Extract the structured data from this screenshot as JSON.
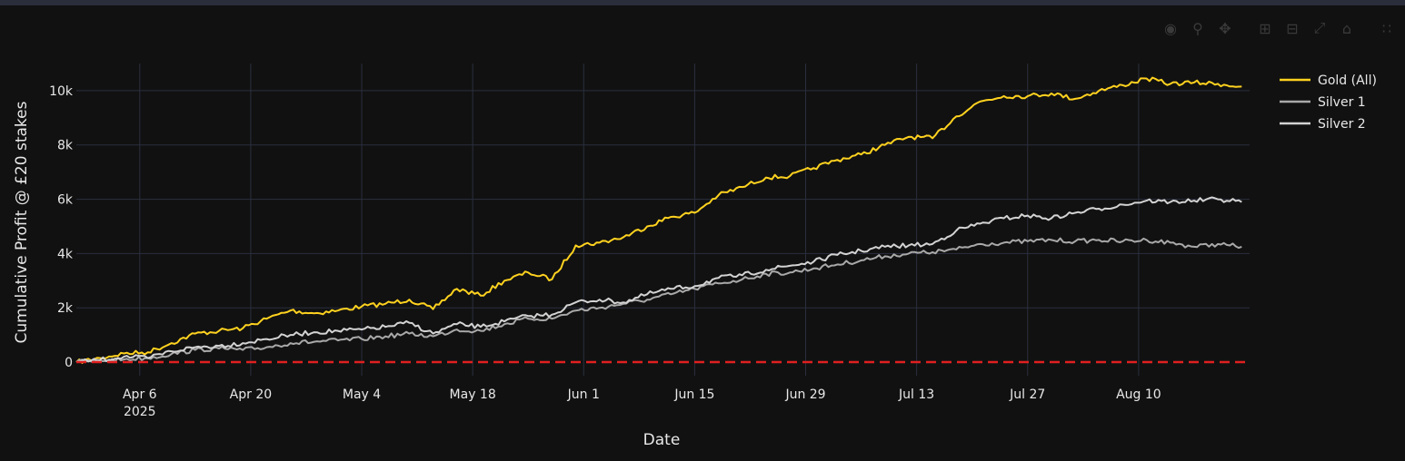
{
  "colors": {
    "background": "#111111",
    "grid": "#2b2f3e",
    "axis_text": "#e8e8e8",
    "gold": "#ffd21f",
    "silver1": "#a9a9a9",
    "silver2": "#d3d3d3",
    "zero_line": "#e02020"
  },
  "modebar": {
    "icons": [
      "camera-icon",
      "zoom-icon",
      "pan-icon",
      "zoom-in-icon",
      "zoom-out-icon",
      "autoscale-icon",
      "reset-axes-icon",
      "plotly-logo-icon"
    ]
  },
  "chart_data": {
    "type": "line",
    "title": "",
    "xlabel": "Date",
    "ylabel": "Cumulative Profit @ £20 stakes",
    "xlim": [
      "2025-03-29",
      "2025-08-24"
    ],
    "ylim": [
      -500,
      11000
    ],
    "x_ticks": [
      {
        "date": "2025-04-06",
        "label": "Apr 6",
        "sublabel": "2025"
      },
      {
        "date": "2025-04-20",
        "label": "Apr 20",
        "sublabel": ""
      },
      {
        "date": "2025-05-04",
        "label": "May 4",
        "sublabel": ""
      },
      {
        "date": "2025-05-18",
        "label": "May 18",
        "sublabel": ""
      },
      {
        "date": "2025-06-01",
        "label": "Jun 1",
        "sublabel": ""
      },
      {
        "date": "2025-06-15",
        "label": "Jun 15",
        "sublabel": ""
      },
      {
        "date": "2025-06-29",
        "label": "Jun 29",
        "sublabel": ""
      },
      {
        "date": "2025-07-13",
        "label": "Jul 13",
        "sublabel": ""
      },
      {
        "date": "2025-07-27",
        "label": "Jul 27",
        "sublabel": ""
      },
      {
        "date": "2025-08-10",
        "label": "Aug 10",
        "sublabel": ""
      }
    ],
    "y_ticks": [
      {
        "value": 0,
        "label": "0"
      },
      {
        "value": 2000,
        "label": "2k"
      },
      {
        "value": 4000,
        "label": "4k"
      },
      {
        "value": 6000,
        "label": "6k"
      },
      {
        "value": 8000,
        "label": "8k"
      },
      {
        "value": 10000,
        "label": "10k"
      }
    ],
    "legend_position": "top-right",
    "zero_line": {
      "value": 0,
      "style": "dashed"
    },
    "series": [
      {
        "name": "Gold (All)",
        "color": "#ffd21f",
        "points": [
          [
            "2025-03-29",
            0
          ],
          [
            "2025-04-01",
            150
          ],
          [
            "2025-04-04",
            320
          ],
          [
            "2025-04-07",
            360
          ],
          [
            "2025-04-10",
            700
          ],
          [
            "2025-04-13",
            1050
          ],
          [
            "2025-04-16",
            1150
          ],
          [
            "2025-04-19",
            1250
          ],
          [
            "2025-04-22",
            1600
          ],
          [
            "2025-04-25",
            1900
          ],
          [
            "2025-04-28",
            1800
          ],
          [
            "2025-05-01",
            1900
          ],
          [
            "2025-05-04",
            2050
          ],
          [
            "2025-05-07",
            2150
          ],
          [
            "2025-05-10",
            2300
          ],
          [
            "2025-05-13",
            1950
          ],
          [
            "2025-05-16",
            2700
          ],
          [
            "2025-05-19",
            2450
          ],
          [
            "2025-05-22",
            3000
          ],
          [
            "2025-05-25",
            3300
          ],
          [
            "2025-05-28",
            3050
          ],
          [
            "2025-05-31",
            4300
          ],
          [
            "2025-06-03",
            4400
          ],
          [
            "2025-06-06",
            4600
          ],
          [
            "2025-06-09",
            5000
          ],
          [
            "2025-06-12",
            5350
          ],
          [
            "2025-06-15",
            5500
          ],
          [
            "2025-06-18",
            6150
          ],
          [
            "2025-06-21",
            6450
          ],
          [
            "2025-06-24",
            6800
          ],
          [
            "2025-06-27",
            6850
          ],
          [
            "2025-06-30",
            7150
          ],
          [
            "2025-07-03",
            7450
          ],
          [
            "2025-07-06",
            7650
          ],
          [
            "2025-07-09",
            8000
          ],
          [
            "2025-07-12",
            8300
          ],
          [
            "2025-07-15",
            8250
          ],
          [
            "2025-07-18",
            9050
          ],
          [
            "2025-07-21",
            9600
          ],
          [
            "2025-07-24",
            9800
          ],
          [
            "2025-07-27",
            9800
          ],
          [
            "2025-07-30",
            9900
          ],
          [
            "2025-08-02",
            9700
          ],
          [
            "2025-08-05",
            10000
          ],
          [
            "2025-08-08",
            10200
          ],
          [
            "2025-08-11",
            10450
          ],
          [
            "2025-08-14",
            10250
          ],
          [
            "2025-08-17",
            10300
          ],
          [
            "2025-08-20",
            10250
          ],
          [
            "2025-08-23",
            10150
          ]
        ]
      },
      {
        "name": "Silver 1",
        "color": "#a9a9a9",
        "points": [
          [
            "2025-03-29",
            0
          ],
          [
            "2025-04-01",
            50
          ],
          [
            "2025-04-04",
            100
          ],
          [
            "2025-04-07",
            150
          ],
          [
            "2025-04-10",
            300
          ],
          [
            "2025-04-13",
            450
          ],
          [
            "2025-04-16",
            500
          ],
          [
            "2025-04-19",
            450
          ],
          [
            "2025-04-22",
            550
          ],
          [
            "2025-04-25",
            700
          ],
          [
            "2025-04-28",
            750
          ],
          [
            "2025-05-01",
            800
          ],
          [
            "2025-05-04",
            850
          ],
          [
            "2025-05-07",
            950
          ],
          [
            "2025-05-10",
            1050
          ],
          [
            "2025-05-13",
            950
          ],
          [
            "2025-05-16",
            1200
          ],
          [
            "2025-05-19",
            1150
          ],
          [
            "2025-05-22",
            1400
          ],
          [
            "2025-05-25",
            1600
          ],
          [
            "2025-05-28",
            1600
          ],
          [
            "2025-05-31",
            1900
          ],
          [
            "2025-06-03",
            2000
          ],
          [
            "2025-06-06",
            2150
          ],
          [
            "2025-06-09",
            2300
          ],
          [
            "2025-06-12",
            2500
          ],
          [
            "2025-06-15",
            2700
          ],
          [
            "2025-06-18",
            2900
          ],
          [
            "2025-06-21",
            3050
          ],
          [
            "2025-06-24",
            3250
          ],
          [
            "2025-06-27",
            3300
          ],
          [
            "2025-06-30",
            3450
          ],
          [
            "2025-07-03",
            3600
          ],
          [
            "2025-07-06",
            3750
          ],
          [
            "2025-07-09",
            3900
          ],
          [
            "2025-07-12",
            4000
          ],
          [
            "2025-07-15",
            4050
          ],
          [
            "2025-07-18",
            4150
          ],
          [
            "2025-07-21",
            4350
          ],
          [
            "2025-07-24",
            4400
          ],
          [
            "2025-07-27",
            4450
          ],
          [
            "2025-07-30",
            4500
          ],
          [
            "2025-08-02",
            4450
          ],
          [
            "2025-08-05",
            4500
          ],
          [
            "2025-08-08",
            4450
          ],
          [
            "2025-08-11",
            4500
          ],
          [
            "2025-08-14",
            4400
          ],
          [
            "2025-08-17",
            4250
          ],
          [
            "2025-08-20",
            4350
          ],
          [
            "2025-08-23",
            4250
          ]
        ]
      },
      {
        "name": "Silver 2",
        "color": "#d3d3d3",
        "points": [
          [
            "2025-03-29",
            0
          ],
          [
            "2025-04-01",
            80
          ],
          [
            "2025-04-04",
            200
          ],
          [
            "2025-04-07",
            150
          ],
          [
            "2025-04-10",
            400
          ],
          [
            "2025-04-13",
            550
          ],
          [
            "2025-04-16",
            600
          ],
          [
            "2025-04-19",
            700
          ],
          [
            "2025-04-22",
            850
          ],
          [
            "2025-04-25",
            1000
          ],
          [
            "2025-04-28",
            1100
          ],
          [
            "2025-05-01",
            1150
          ],
          [
            "2025-05-04",
            1200
          ],
          [
            "2025-05-07",
            1300
          ],
          [
            "2025-05-10",
            1450
          ],
          [
            "2025-05-13",
            1050
          ],
          [
            "2025-05-16",
            1400
          ],
          [
            "2025-05-19",
            1300
          ],
          [
            "2025-05-22",
            1500
          ],
          [
            "2025-05-25",
            1700
          ],
          [
            "2025-05-28",
            1750
          ],
          [
            "2025-05-31",
            2200
          ],
          [
            "2025-06-03",
            2300
          ],
          [
            "2025-06-06",
            2200
          ],
          [
            "2025-06-09",
            2500
          ],
          [
            "2025-06-12",
            2700
          ],
          [
            "2025-06-15",
            2800
          ],
          [
            "2025-06-18",
            3100
          ],
          [
            "2025-06-21",
            3200
          ],
          [
            "2025-06-24",
            3400
          ],
          [
            "2025-06-27",
            3550
          ],
          [
            "2025-06-30",
            3700
          ],
          [
            "2025-07-03",
            3950
          ],
          [
            "2025-07-06",
            4100
          ],
          [
            "2025-07-09",
            4250
          ],
          [
            "2025-07-12",
            4300
          ],
          [
            "2025-07-15",
            4350
          ],
          [
            "2025-07-18",
            4850
          ],
          [
            "2025-07-21",
            5100
          ],
          [
            "2025-07-24",
            5300
          ],
          [
            "2025-07-27",
            5400
          ],
          [
            "2025-07-30",
            5300
          ],
          [
            "2025-08-02",
            5500
          ],
          [
            "2025-08-05",
            5650
          ],
          [
            "2025-08-08",
            5800
          ],
          [
            "2025-08-11",
            5950
          ],
          [
            "2025-08-14",
            5900
          ],
          [
            "2025-08-17",
            5950
          ],
          [
            "2025-08-20",
            6000
          ],
          [
            "2025-08-23",
            5900
          ]
        ]
      }
    ]
  }
}
